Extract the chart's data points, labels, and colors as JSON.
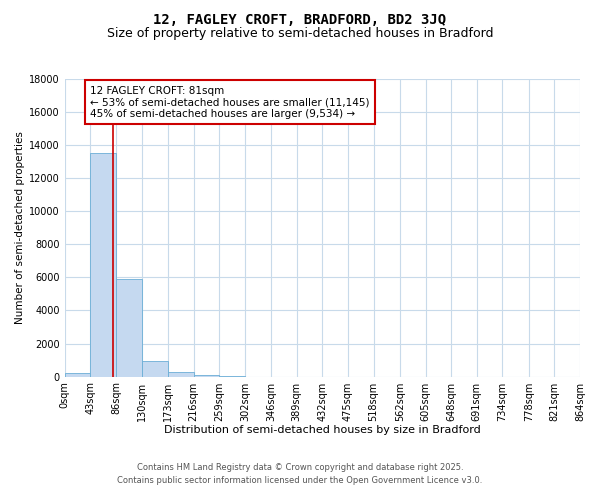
{
  "title": "12, FAGLEY CROFT, BRADFORD, BD2 3JQ",
  "subtitle": "Size of property relative to semi-detached houses in Bradford",
  "xlabel": "Distribution of semi-detached houses by size in Bradford",
  "ylabel": "Number of semi-detached properties",
  "bar_edges": [
    0,
    43,
    86,
    130,
    173,
    216,
    259,
    302,
    346,
    389,
    432,
    475,
    518,
    562,
    605,
    648,
    691,
    734,
    778,
    821,
    864
  ],
  "bar_heights": [
    200,
    13500,
    5900,
    950,
    300,
    100,
    20,
    5,
    2,
    1,
    1,
    1,
    0,
    0,
    0,
    0,
    0,
    0,
    0,
    0
  ],
  "bar_color": "#c5d9f0",
  "bar_edgecolor": "#6baed6",
  "vline_x": 81,
  "vline_color": "#cc0000",
  "ylim": [
    0,
    18000
  ],
  "yticks": [
    0,
    2000,
    4000,
    6000,
    8000,
    10000,
    12000,
    14000,
    16000,
    18000
  ],
  "xtick_labels": [
    "0sqm",
    "43sqm",
    "86sqm",
    "130sqm",
    "173sqm",
    "216sqm",
    "259sqm",
    "302sqm",
    "346sqm",
    "389sqm",
    "432sqm",
    "475sqm",
    "518sqm",
    "562sqm",
    "605sqm",
    "648sqm",
    "691sqm",
    "734sqm",
    "778sqm",
    "821sqm",
    "864sqm"
  ],
  "annotation_title": "12 FAGLEY CROFT: 81sqm",
  "annotation_line1": "← 53% of semi-detached houses are smaller (11,145)",
  "annotation_line2": "45% of semi-detached houses are larger (9,534) →",
  "annotation_box_color": "#ffffff",
  "annotation_box_edgecolor": "#cc0000",
  "footer_line1": "Contains HM Land Registry data © Crown copyright and database right 2025.",
  "footer_line2": "Contains public sector information licensed under the Open Government Licence v3.0.",
  "bg_color": "#ffffff",
  "grid_color": "#c8daea",
  "title_fontsize": 10,
  "subtitle_fontsize": 9,
  "xlabel_fontsize": 8,
  "ylabel_fontsize": 7.5,
  "tick_fontsize": 7,
  "annotation_fontsize": 7.5,
  "footer_fontsize": 6
}
